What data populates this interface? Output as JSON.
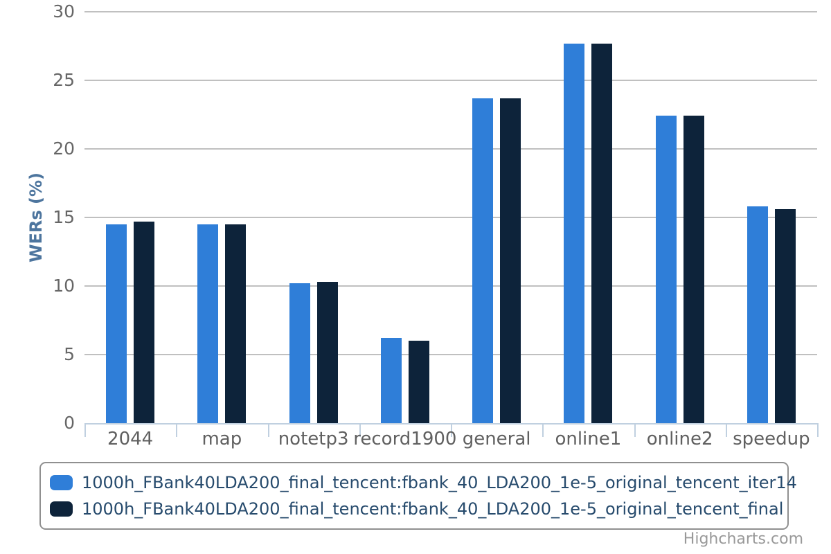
{
  "chart_data": {
    "type": "bar",
    "title": "",
    "xlabel": "",
    "ylabel": "WERs (%)",
    "ylim": [
      0,
      30
    ],
    "ytick_step": 5,
    "grid": true,
    "legend_position": "bottom",
    "categories": [
      "2044",
      "map",
      "notetp3",
      "record1900",
      "general",
      "online1",
      "online2",
      "speedup"
    ],
    "yticks": [
      "0",
      "5",
      "10",
      "15",
      "20",
      "25",
      "30"
    ],
    "series": [
      {
        "name": "1000h_FBank40LDA200_final_tencent:fbank_40_LDA200_1e-5_original_tencent_iter14",
        "color": "#2f7ed8",
        "values": [
          14.5,
          14.5,
          10.2,
          6.2,
          23.7,
          27.7,
          22.4,
          15.8
        ]
      },
      {
        "name": "1000h_FBank40LDA200_final_tencent:fbank_40_LDA200_1e-5_original_tencent_final",
        "color": "#0d233a",
        "values": [
          14.7,
          14.5,
          10.3,
          6.0,
          23.7,
          27.7,
          22.4,
          15.6
        ]
      }
    ]
  },
  "styles": {
    "grid_color": "#c0c0c0",
    "axis_line_color": "#c0d0e0",
    "tick_color": "#c0d0e0",
    "y_label_color": "#666666",
    "x_label_color": "#606060",
    "y_title_color": "#4d759e",
    "legend_text_color": "#274b6d",
    "legend_border_color": "#909090",
    "credits_color": "#999999"
  },
  "credits": {
    "label": "Highcharts.com"
  }
}
